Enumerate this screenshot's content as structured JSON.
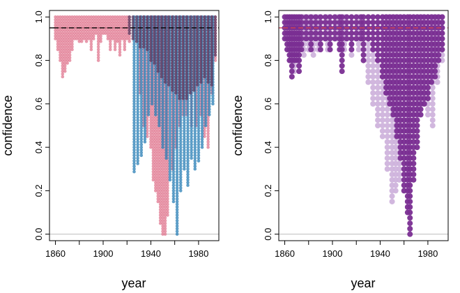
{
  "chart_data": [
    {
      "type": "scatter",
      "panel": "left",
      "xlabel": "year",
      "ylabel": "confidence",
      "xlim": [
        1855,
        1997
      ],
      "ylim": [
        -0.03,
        1.03
      ],
      "x_ticks": [
        "1860",
        "1900",
        "1940",
        "1980"
      ],
      "y_ticks": [
        "0.0",
        "0.2",
        "0.4",
        "0.6",
        "0.8",
        "1.0"
      ],
      "reference_lines": [
        {
          "y": 0.95,
          "style": "dashed",
          "color": "#000000"
        },
        {
          "y": 0.0,
          "style": "solid",
          "color": "#bdbdbd"
        }
      ],
      "grid": false,
      "legend": "none",
      "step": 0.0125,
      "series": [
        {
          "color": "#e07890",
          "columns": [
            {
              "x": 1860,
              "min": 0.9
            },
            {
              "x": 1862,
              "min": 0.85
            },
            {
              "x": 1864,
              "min": 0.8
            },
            {
              "x": 1866,
              "min": 0.72
            },
            {
              "x": 1868,
              "min": 0.75
            },
            {
              "x": 1870,
              "min": 0.78
            },
            {
              "x": 1872,
              "min": 0.8
            },
            {
              "x": 1874,
              "min": 0.85
            },
            {
              "x": 1876,
              "min": 0.9
            },
            {
              "x": 1878,
              "min": 0.9
            },
            {
              "x": 1880,
              "min": 0.88
            },
            {
              "x": 1882,
              "min": 0.88
            },
            {
              "x": 1884,
              "min": 0.9
            },
            {
              "x": 1886,
              "min": 0.88
            },
            {
              "x": 1888,
              "min": 0.9
            },
            {
              "x": 1890,
              "min": 0.85
            },
            {
              "x": 1892,
              "min": 0.9
            },
            {
              "x": 1894,
              "min": 0.92
            },
            {
              "x": 1896,
              "min": 0.8
            },
            {
              "x": 1898,
              "min": 0.88
            },
            {
              "x": 1900,
              "min": 0.92
            },
            {
              "x": 1902,
              "min": 0.92
            },
            {
              "x": 1904,
              "min": 0.9
            },
            {
              "x": 1906,
              "min": 0.85
            },
            {
              "x": 1908,
              "min": 0.9
            },
            {
              "x": 1910,
              "min": 0.85
            },
            {
              "x": 1912,
              "min": 0.88
            },
            {
              "x": 1914,
              "min": 0.82
            },
            {
              "x": 1916,
              "min": 0.9
            },
            {
              "x": 1918,
              "min": 0.85
            },
            {
              "x": 1920,
              "min": 0.9
            },
            {
              "x": 1922,
              "min": 0.88
            },
            {
              "x": 1931,
              "min": 0.65
            },
            {
              "x": 1934,
              "min": 0.5
            },
            {
              "x": 1937,
              "min": 0.45
            },
            {
              "x": 1940,
              "min": 0.4
            },
            {
              "x": 1942,
              "min": 0.25
            },
            {
              "x": 1944,
              "min": 0.2
            },
            {
              "x": 1946,
              "min": 0.15
            },
            {
              "x": 1948,
              "min": 0.05
            },
            {
              "x": 1950,
              "min": 0.0
            },
            {
              "x": 1952,
              "min": 0.0
            },
            {
              "x": 1954,
              "min": 0.08
            },
            {
              "x": 1958,
              "min": 0.3
            },
            {
              "x": 1961,
              "min": 0.4
            },
            {
              "x": 1964,
              "min": 0.5
            },
            {
              "x": 1967,
              "min": 0.55
            },
            {
              "x": 1970,
              "min": 0.55
            },
            {
              "x": 1974,
              "min": 0.5
            },
            {
              "x": 1978,
              "min": 0.5
            },
            {
              "x": 1982,
              "min": 0.55
            },
            {
              "x": 1985,
              "min": 0.45
            },
            {
              "x": 1988,
              "min": 0.4
            },
            {
              "x": 1991,
              "min": 0.65
            },
            {
              "x": 1994,
              "min": 0.8
            }
          ]
        },
        {
          "color": "#2a7fb5",
          "columns": [
            {
              "x": 1926,
              "min": 0.28
            },
            {
              "x": 1929,
              "min": 0.32
            },
            {
              "x": 1932,
              "min": 0.36
            },
            {
              "x": 1935,
              "min": 0.42
            },
            {
              "x": 1938,
              "min": 0.55
            },
            {
              "x": 1941,
              "min": 0.6
            },
            {
              "x": 1944,
              "min": 0.55
            },
            {
              "x": 1947,
              "min": 0.5
            },
            {
              "x": 1950,
              "min": 0.4
            },
            {
              "x": 1953,
              "min": 0.35
            },
            {
              "x": 1956,
              "min": 0.25
            },
            {
              "x": 1959,
              "min": 0.15
            },
            {
              "x": 1962,
              "min": 0.0
            },
            {
              "x": 1965,
              "min": 0.2
            },
            {
              "x": 1968,
              "min": 0.3
            },
            {
              "x": 1971,
              "min": 0.22
            },
            {
              "x": 1974,
              "min": 0.35
            },
            {
              "x": 1977,
              "min": 0.3
            },
            {
              "x": 1980,
              "min": 0.33
            },
            {
              "x": 1983,
              "min": 0.4
            },
            {
              "x": 1986,
              "min": 0.5
            },
            {
              "x": 1989,
              "min": 0.55
            },
            {
              "x": 1992,
              "min": 0.6
            }
          ]
        },
        {
          "color": "#5a3a60",
          "columns": [
            {
              "x": 1922,
              "min": 0.92
            },
            {
              "x": 1925,
              "min": 0.9
            },
            {
              "x": 1928,
              "min": 0.88
            },
            {
              "x": 1931,
              "min": 0.86
            },
            {
              "x": 1934,
              "min": 0.86
            },
            {
              "x": 1937,
              "min": 0.84
            },
            {
              "x": 1940,
              "min": 0.8
            },
            {
              "x": 1943,
              "min": 0.78
            },
            {
              "x": 1946,
              "min": 0.74
            },
            {
              "x": 1949,
              "min": 0.72
            },
            {
              "x": 1952,
              "min": 0.7
            },
            {
              "x": 1955,
              "min": 0.68
            },
            {
              "x": 1958,
              "min": 0.66
            },
            {
              "x": 1961,
              "min": 0.64
            },
            {
              "x": 1964,
              "min": 0.62
            },
            {
              "x": 1967,
              "min": 0.62
            },
            {
              "x": 1970,
              "min": 0.62
            },
            {
              "x": 1973,
              "min": 0.64
            },
            {
              "x": 1976,
              "min": 0.66
            },
            {
              "x": 1979,
              "min": 0.68
            },
            {
              "x": 1982,
              "min": 0.7
            },
            {
              "x": 1985,
              "min": 0.72
            },
            {
              "x": 1988,
              "min": 0.7
            },
            {
              "x": 1991,
              "min": 0.68
            },
            {
              "x": 1994,
              "min": 0.82
            }
          ]
        }
      ]
    },
    {
      "type": "scatter",
      "panel": "right",
      "xlabel": "year",
      "ylabel": "confidence",
      "xlim": [
        1855,
        1997
      ],
      "ylim": [
        -0.03,
        1.03
      ],
      "x_ticks": [
        "1860",
        "1900",
        "1940",
        "1980"
      ],
      "y_ticks": [
        "0.0",
        "0.2",
        "0.4",
        "0.6",
        "0.8",
        "1.0"
      ],
      "reference_lines": [
        {
          "y": 0.95,
          "style": "dashed",
          "color": "#d04050"
        },
        {
          "y": 0.0,
          "style": "solid",
          "color": "#bdbdbd"
        }
      ],
      "grid": false,
      "legend": "none",
      "step": 0.025,
      "series": [
        {
          "color": "#cfb3dc",
          "columns": [
            {
              "x": 1864,
              "min": 0.8
            },
            {
              "x": 1866,
              "min": 0.78
            },
            {
              "x": 1868,
              "min": 0.75
            },
            {
              "x": 1872,
              "min": 0.78
            },
            {
              "x": 1876,
              "min": 0.82
            },
            {
              "x": 1880,
              "min": 0.85
            },
            {
              "x": 1884,
              "min": 0.82
            },
            {
              "x": 1888,
              "min": 0.85
            },
            {
              "x": 1896,
              "min": 0.85
            },
            {
              "x": 1904,
              "min": 0.88
            },
            {
              "x": 1910,
              "min": 0.85
            },
            {
              "x": 1916,
              "min": 0.82
            },
            {
              "x": 1922,
              "min": 0.85
            },
            {
              "x": 1930,
              "min": 0.7
            },
            {
              "x": 1934,
              "min": 0.6
            },
            {
              "x": 1938,
              "min": 0.5
            },
            {
              "x": 1942,
              "min": 0.45
            },
            {
              "x": 1946,
              "min": 0.3
            },
            {
              "x": 1950,
              "min": 0.15
            },
            {
              "x": 1953,
              "min": 0.18
            },
            {
              "x": 1956,
              "min": 0.25
            },
            {
              "x": 1960,
              "min": 0.35
            },
            {
              "x": 1968,
              "min": 0.45
            },
            {
              "x": 1972,
              "min": 0.55
            },
            {
              "x": 1976,
              "min": 0.6
            },
            {
              "x": 1980,
              "min": 0.55
            },
            {
              "x": 1984,
              "min": 0.5
            },
            {
              "x": 1988,
              "min": 0.7
            },
            {
              "x": 1992,
              "min": 0.8
            }
          ]
        },
        {
          "color": "#7a2e92",
          "columns": [
            {
              "x": 1860,
              "min": 0.9
            },
            {
              "x": 1862,
              "min": 0.85
            },
            {
              "x": 1864,
              "min": 0.78
            },
            {
              "x": 1866,
              "min": 0.72
            },
            {
              "x": 1868,
              "min": 0.78
            },
            {
              "x": 1870,
              "min": 0.8
            },
            {
              "x": 1872,
              "min": 0.75
            },
            {
              "x": 1874,
              "min": 0.85
            },
            {
              "x": 1878,
              "min": 0.9
            },
            {
              "x": 1882,
              "min": 0.85
            },
            {
              "x": 1886,
              "min": 0.88
            },
            {
              "x": 1890,
              "min": 0.85
            },
            {
              "x": 1894,
              "min": 0.9
            },
            {
              "x": 1898,
              "min": 0.85
            },
            {
              "x": 1902,
              "min": 0.9
            },
            {
              "x": 1906,
              "min": 0.85
            },
            {
              "x": 1908,
              "min": 0.75
            },
            {
              "x": 1912,
              "min": 0.88
            },
            {
              "x": 1916,
              "min": 0.85
            },
            {
              "x": 1920,
              "min": 0.9
            },
            {
              "x": 1924,
              "min": 0.88
            },
            {
              "x": 1926,
              "min": 0.78
            },
            {
              "x": 1930,
              "min": 0.88
            },
            {
              "x": 1934,
              "min": 0.85
            },
            {
              "x": 1938,
              "min": 0.8
            },
            {
              "x": 1942,
              "min": 0.72
            },
            {
              "x": 1945,
              "min": 0.65
            },
            {
              "x": 1948,
              "min": 0.6
            },
            {
              "x": 1951,
              "min": 0.55
            },
            {
              "x": 1954,
              "min": 0.45
            },
            {
              "x": 1957,
              "min": 0.35
            },
            {
              "x": 1960,
              "min": 0.2
            },
            {
              "x": 1963,
              "min": 0.1
            },
            {
              "x": 1965,
              "min": 0.0
            },
            {
              "x": 1968,
              "min": 0.25
            },
            {
              "x": 1971,
              "min": 0.4
            },
            {
              "x": 1974,
              "min": 0.55
            },
            {
              "x": 1977,
              "min": 0.6
            },
            {
              "x": 1980,
              "min": 0.62
            },
            {
              "x": 1983,
              "min": 0.7
            },
            {
              "x": 1986,
              "min": 0.72
            },
            {
              "x": 1989,
              "min": 0.78
            },
            {
              "x": 1992,
              "min": 0.85
            }
          ]
        }
      ]
    }
  ]
}
